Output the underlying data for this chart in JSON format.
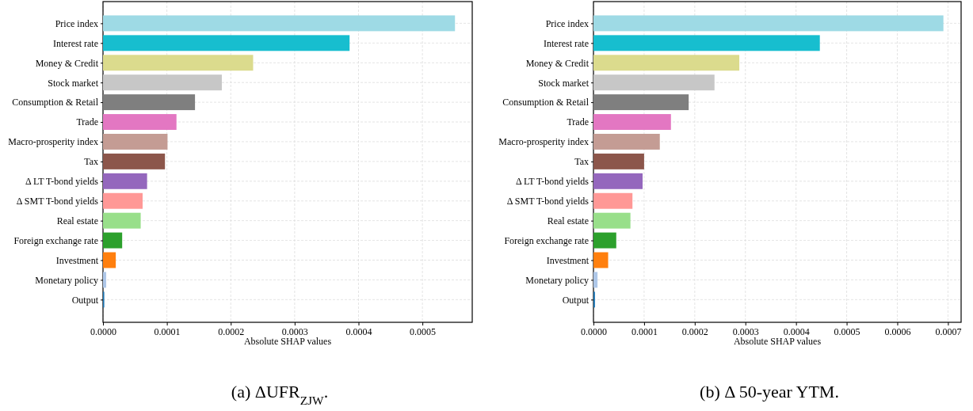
{
  "chart_data": [
    {
      "type": "bar",
      "orientation": "horizontal",
      "title": "(a) ΔUFR$_{ZJW}$.",
      "xlabel": "Absolute SHAP values",
      "grid": true,
      "categories": [
        "Price index",
        "Interest rate",
        "Money & Credit",
        "Stock market",
        "Consumption & Retail",
        "Trade",
        "Macro-prosperity index",
        "Tax",
        "Δ LT T-bond yields",
        "Δ SMT T-bond yields",
        "Real estate",
        "Foreign exchange rate",
        "Investment",
        "Monetary policy",
        "Output"
      ],
      "values": [
        0.000551,
        0.000386,
        0.000235,
        0.000186,
        0.000144,
        0.000115,
        0.000101,
        9.7e-05,
        6.9e-05,
        6.2e-05,
        5.9e-05,
        3e-05,
        2e-05,
        5e-06,
        2e-06
      ],
      "colors": [
        "#9edae5",
        "#17becf",
        "#dbdb8d",
        "#c7c7c7",
        "#7f7f7f",
        "#e377c2",
        "#c49c94",
        "#8c564b",
        "#9467bd",
        "#ff9896",
        "#98df8a",
        "#2ca02c",
        "#ff7f0e",
        "#aec7e8",
        "#1f77b4"
      ],
      "xlim": [
        0,
        0.000578
      ],
      "xticks": [
        {
          "value": 0,
          "label": "0.0000"
        },
        0.0001,
        0.0002,
        0.0003,
        0.0004,
        0.0005
      ]
    },
    {
      "type": "bar",
      "orientation": "horizontal",
      "title": "(b) Δ 50-year YTM.",
      "xlabel": "Absolute SHAP values",
      "grid": true,
      "categories": [
        "Price index",
        "Interest rate",
        "Money & Credit",
        "Stock market",
        "Consumption & Retail",
        "Trade",
        "Macro-prosperity index",
        "Tax",
        "Δ LT T-bond yields",
        "Δ SMT T-bond yields",
        "Real estate",
        "Foreign exchange rate",
        "Investment",
        "Monetary policy",
        "Output"
      ],
      "values": [
        0.000691,
        0.000447,
        0.000288,
        0.000239,
        0.000188,
        0.000153,
        0.000131,
        0.0001,
        9.7e-05,
        7.7e-05,
        7.3e-05,
        4.5e-05,
        2.9e-05,
        8e-06,
        3e-06
      ],
      "colors": [
        "#9edae5",
        "#17becf",
        "#dbdb8d",
        "#c7c7c7",
        "#7f7f7f",
        "#e377c2",
        "#c49c94",
        "#8c564b",
        "#9467bd",
        "#ff9896",
        "#98df8a",
        "#2ca02c",
        "#ff7f0e",
        "#aec7e8",
        "#1f77b4"
      ],
      "xlim": [
        0,
        0.000726
      ],
      "xticks": [
        {
          "value": 0,
          "label": "0.0000"
        },
        0.0001,
        0.0002,
        0.0003,
        0.0004,
        0.0005,
        0.0006,
        0.0007
      ]
    }
  ]
}
